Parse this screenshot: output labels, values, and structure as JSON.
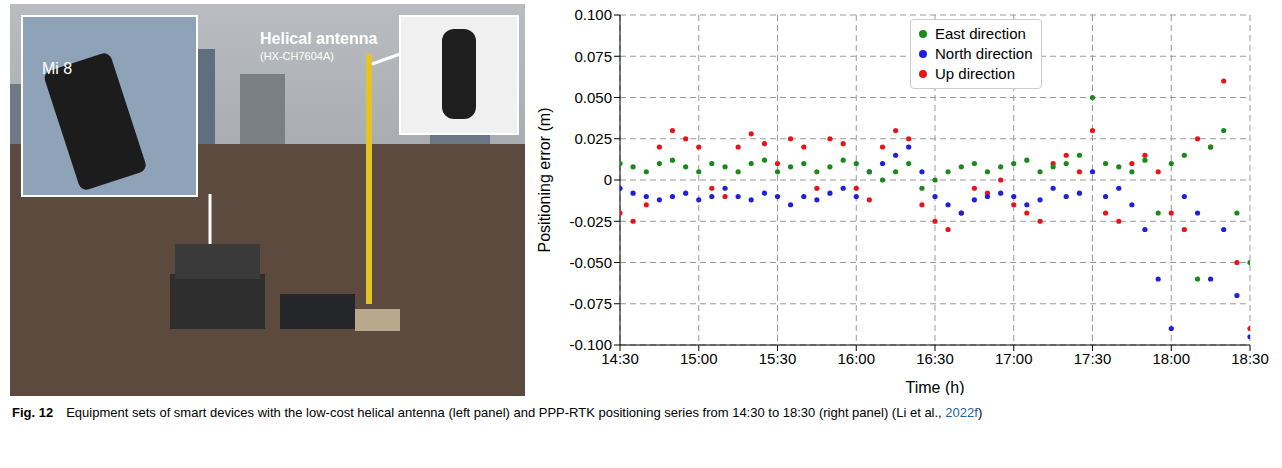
{
  "photo": {
    "phone_label": "Mi 8",
    "antenna_label": "Helical antenna",
    "antenna_model": "(HX-CH7604A)"
  },
  "chart_data": {
    "type": "scatter",
    "x_label": "Time (h)",
    "y_label": "Positioning error (m)",
    "x": [
      14.5,
      14.583,
      14.667,
      14.75,
      14.833,
      14.917,
      15,
      15.083,
      15.167,
      15.25,
      15.333,
      15.417,
      15.5,
      15.583,
      15.667,
      15.75,
      15.833,
      15.917,
      16,
      16.083,
      16.167,
      16.25,
      16.333,
      16.417,
      16.5,
      16.583,
      16.667,
      16.75,
      16.833,
      16.917,
      17,
      17.083,
      17.167,
      17.25,
      17.333,
      17.417,
      17.5,
      17.583,
      17.667,
      17.75,
      17.833,
      17.917,
      18,
      18.083,
      18.167,
      18.25,
      18.333,
      18.417,
      18.5
    ],
    "series": [
      {
        "name": "East direction",
        "color": "#1a8a1a",
        "values": [
          0.01,
          0.008,
          0.005,
          0.01,
          0.012,
          0.008,
          0.005,
          0.01,
          0.008,
          0.005,
          0.01,
          0.012,
          0.005,
          0.008,
          0.01,
          0.005,
          0.008,
          0.012,
          0.01,
          0.005,
          0.0,
          0.005,
          0.01,
          -0.005,
          0.0,
          0.005,
          0.008,
          0.01,
          0.005,
          0.008,
          0.01,
          0.012,
          0.005,
          0.008,
          0.01,
          0.015,
          0.05,
          0.01,
          0.008,
          0.005,
          0.012,
          -0.02,
          0.01,
          0.015,
          -0.06,
          0.02,
          0.03,
          -0.02,
          -0.05
        ]
      },
      {
        "name": "North direction",
        "color": "#1f1fe0",
        "values": [
          -0.005,
          -0.008,
          -0.01,
          -0.012,
          -0.01,
          -0.008,
          -0.012,
          -0.01,
          -0.005,
          -0.01,
          -0.012,
          -0.008,
          -0.01,
          -0.015,
          -0.01,
          -0.012,
          -0.008,
          -0.005,
          -0.01,
          0.005,
          0.01,
          0.015,
          0.02,
          0.005,
          -0.01,
          -0.015,
          -0.02,
          -0.012,
          -0.01,
          -0.008,
          -0.01,
          -0.015,
          -0.012,
          -0.005,
          -0.01,
          -0.008,
          0.005,
          -0.01,
          -0.005,
          -0.015,
          -0.03,
          -0.06,
          -0.09,
          -0.01,
          -0.02,
          -0.06,
          -0.03,
          -0.07,
          -0.095
        ]
      },
      {
        "name": "Up direction",
        "color": "#e8141a",
        "values": [
          -0.02,
          -0.025,
          -0.015,
          0.02,
          0.03,
          0.025,
          0.02,
          -0.005,
          -0.01,
          0.02,
          0.028,
          0.022,
          0.01,
          0.025,
          0.02,
          -0.005,
          0.025,
          0.022,
          -0.005,
          -0.012,
          0.02,
          0.03,
          0.025,
          -0.015,
          -0.025,
          -0.03,
          -0.02,
          -0.005,
          -0.008,
          0.0,
          -0.015,
          -0.02,
          -0.025,
          0.01,
          0.015,
          0.005,
          0.03,
          -0.02,
          -0.025,
          0.01,
          0.015,
          0.005,
          -0.02,
          -0.03,
          0.025,
          0.02,
          0.06,
          -0.05,
          -0.09
        ]
      }
    ],
    "xlim": [
      14.5,
      18.5
    ],
    "xticks": [
      {
        "value": 14.5,
        "label": "14:30"
      },
      {
        "value": 15,
        "label": "15:00"
      },
      {
        "value": 15.5,
        "label": "15:30"
      },
      {
        "value": 16,
        "label": "16:00"
      },
      {
        "value": 16.5,
        "label": "16:30"
      },
      {
        "value": 17,
        "label": "17:00"
      },
      {
        "value": 17.5,
        "label": "17:30"
      },
      {
        "value": 18,
        "label": "18:00"
      },
      {
        "value": 18.5,
        "label": "18:30"
      }
    ],
    "ylim": [
      -0.1,
      0.1
    ],
    "yticks": [
      {
        "value": -0.1,
        "label": "-0.100"
      },
      -0.075,
      {
        "value": -0.05,
        "label": "-0.050"
      },
      -0.025,
      0,
      0.025,
      {
        "value": 0.05,
        "label": "0.050"
      },
      0.075,
      {
        "value": 0.1,
        "label": "0.100"
      }
    ],
    "grid": true,
    "legend": "upper center",
    "marker": "circle"
  },
  "caption": {
    "label": "Fig. 12",
    "text": "Equipment sets of smart devices with the low-cost helical antenna (left panel) and PPP-RTK positioning series from 14:30 to 18:30 (right panel) (Li et al., ",
    "citation": "2022f",
    "text_after": ")"
  }
}
